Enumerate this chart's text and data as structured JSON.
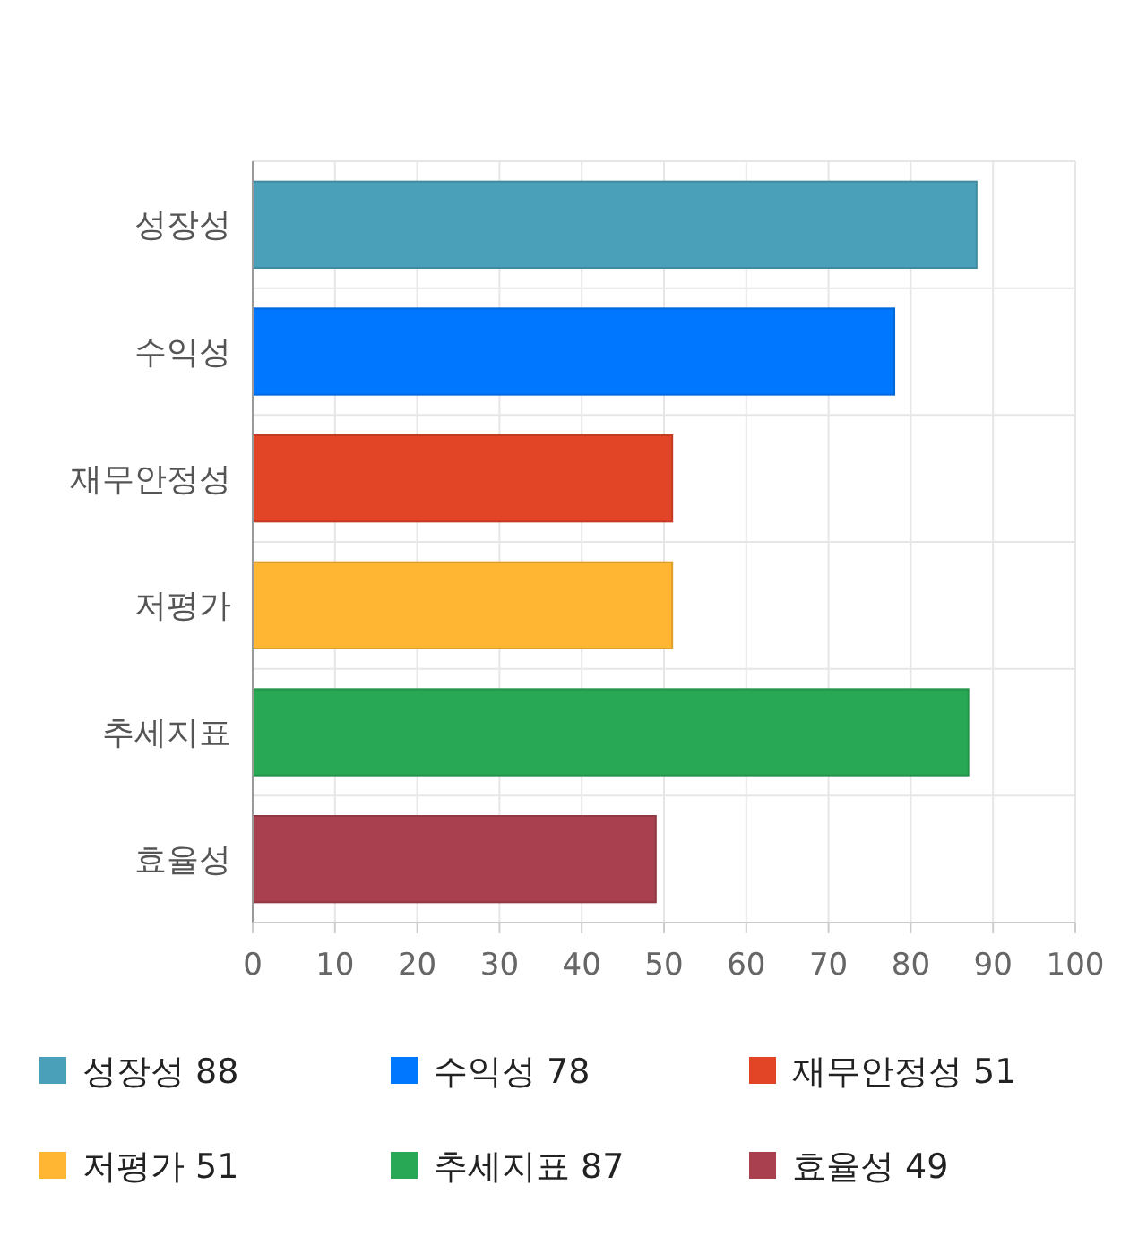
{
  "chart_data": {
    "type": "bar",
    "orientation": "horizontal",
    "stacked": true,
    "categories": [
      "성장성",
      "수익성",
      "재무안정성",
      "저평가",
      "추세지표",
      "효율성"
    ],
    "series": [
      {
        "name": "성장성 88",
        "color": "#4aa0b8",
        "values": [
          88,
          null,
          null,
          null,
          null,
          null
        ]
      },
      {
        "name": "수익성 78",
        "color": "#0077ff",
        "values": [
          null,
          78,
          null,
          null,
          null,
          null
        ]
      },
      {
        "name": "재무안정성 51",
        "color": "#e24426",
        "values": [
          null,
          null,
          51,
          null,
          null,
          null
        ]
      },
      {
        "name": "저평가 51",
        "color": "#ffb733",
        "values": [
          null,
          null,
          null,
          51,
          null,
          null
        ]
      },
      {
        "name": "추세지표 87",
        "color": "#28a855",
        "values": [
          null,
          null,
          null,
          null,
          87,
          null
        ]
      },
      {
        "name": "효율성 49",
        "color": "#a8404f",
        "values": [
          null,
          null,
          null,
          null,
          null,
          49
        ]
      }
    ],
    "xlim": [
      0,
      100
    ],
    "xticks": [
      0,
      10,
      20,
      30,
      40,
      50,
      60,
      70,
      80,
      90,
      100
    ],
    "grid": true,
    "legend": "bottom"
  }
}
